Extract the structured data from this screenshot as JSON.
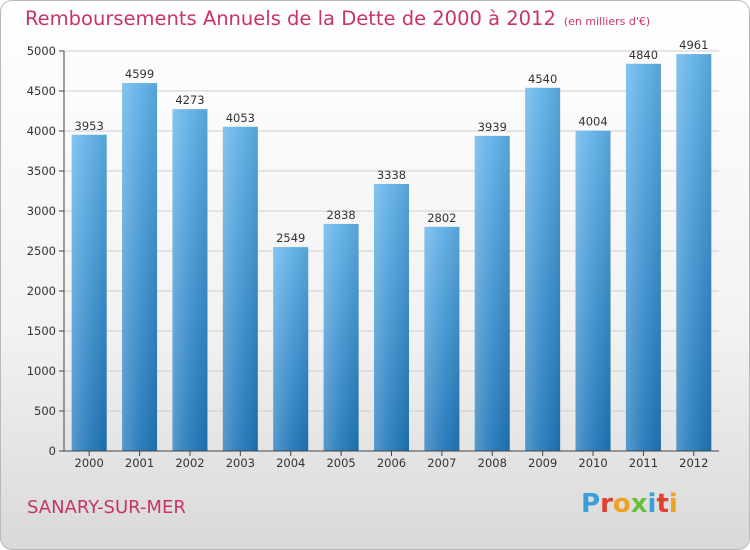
{
  "header": {
    "title": "Remboursements Annuels de la Dette de 2000 à 2012",
    "unit_note": "(en milliers d'€)"
  },
  "footer": {
    "town": "SANARY-SUR-MER",
    "logo_letters": [
      "P",
      "r",
      "o",
      "x",
      "i",
      "t",
      "i"
    ]
  },
  "colors": {
    "title": "#c8336a",
    "bar_top": "#5eb0e8",
    "bar_bottom": "#1f76b9",
    "grid": "#cfcfcf"
  },
  "chart_data": {
    "type": "bar",
    "title": "Remboursements Annuels de la Dette de 2000 à 2012",
    "xlabel": "",
    "ylabel": "",
    "categories": [
      "2000",
      "2001",
      "2002",
      "2003",
      "2004",
      "2005",
      "2006",
      "2007",
      "2008",
      "2009",
      "2010",
      "2011",
      "2012"
    ],
    "values": [
      3953,
      4599,
      4273,
      4053,
      2549,
      2838,
      3338,
      2802,
      3939,
      4540,
      4004,
      4840,
      4961
    ],
    "ylim": [
      0,
      5000
    ],
    "yticks": [
      0,
      500,
      1000,
      1500,
      2000,
      2500,
      3000,
      3500,
      4000,
      4500,
      5000
    ],
    "grid": true,
    "data_labels": true
  }
}
